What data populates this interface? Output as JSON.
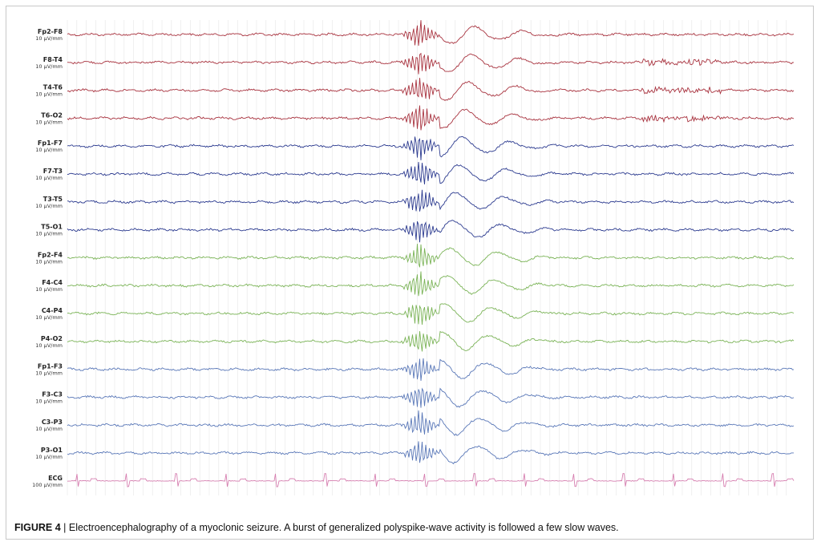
{
  "figure": {
    "number": "FIGURE 4",
    "separator": " | ",
    "caption": "Electroencephalography of a myoclonic seizure. A burst of generalized polyspike-wave activity is followed a few slow waves."
  },
  "channels": [
    {
      "name": "Fp2-F8",
      "scale": "10 µV/mm",
      "color": "#a8323e"
    },
    {
      "name": "F8-T4",
      "scale": "10 µV/mm",
      "color": "#a8323e"
    },
    {
      "name": "T4-T6",
      "scale": "10 µV/mm",
      "color": "#a8323e"
    },
    {
      "name": "T6-O2",
      "scale": "10 µV/mm",
      "color": "#a8323e"
    },
    {
      "name": "Fp1-F7",
      "scale": "10 µV/mm",
      "color": "#2b3a8f"
    },
    {
      "name": "F7-T3",
      "scale": "10 µV/mm",
      "color": "#2b3a8f"
    },
    {
      "name": "T3-T5",
      "scale": "10 µV/mm",
      "color": "#2b3a8f"
    },
    {
      "name": "T5-O1",
      "scale": "10 µV/mm",
      "color": "#2b3a8f"
    },
    {
      "name": "Fp2-F4",
      "scale": "10 µV/mm",
      "color": "#7ab356"
    },
    {
      "name": "F4-C4",
      "scale": "10 µV/mm",
      "color": "#7ab356"
    },
    {
      "name": "C4-P4",
      "scale": "10 µV/mm",
      "color": "#7ab356"
    },
    {
      "name": "P4-O2",
      "scale": "10 µV/mm",
      "color": "#7ab356"
    },
    {
      "name": "Fp1-F3",
      "scale": "10 µV/mm",
      "color": "#5a78b8"
    },
    {
      "name": "F3-C3",
      "scale": "10 µV/mm",
      "color": "#5a78b8"
    },
    {
      "name": "C3-P3",
      "scale": "10 µV/mm",
      "color": "#5a78b8"
    },
    {
      "name": "P3-O1",
      "scale": "10 µV/mm",
      "color": "#5a78b8"
    },
    {
      "name": "ECG",
      "scale": "100 µV/mm",
      "color": "#d67fb0"
    }
  ]
}
